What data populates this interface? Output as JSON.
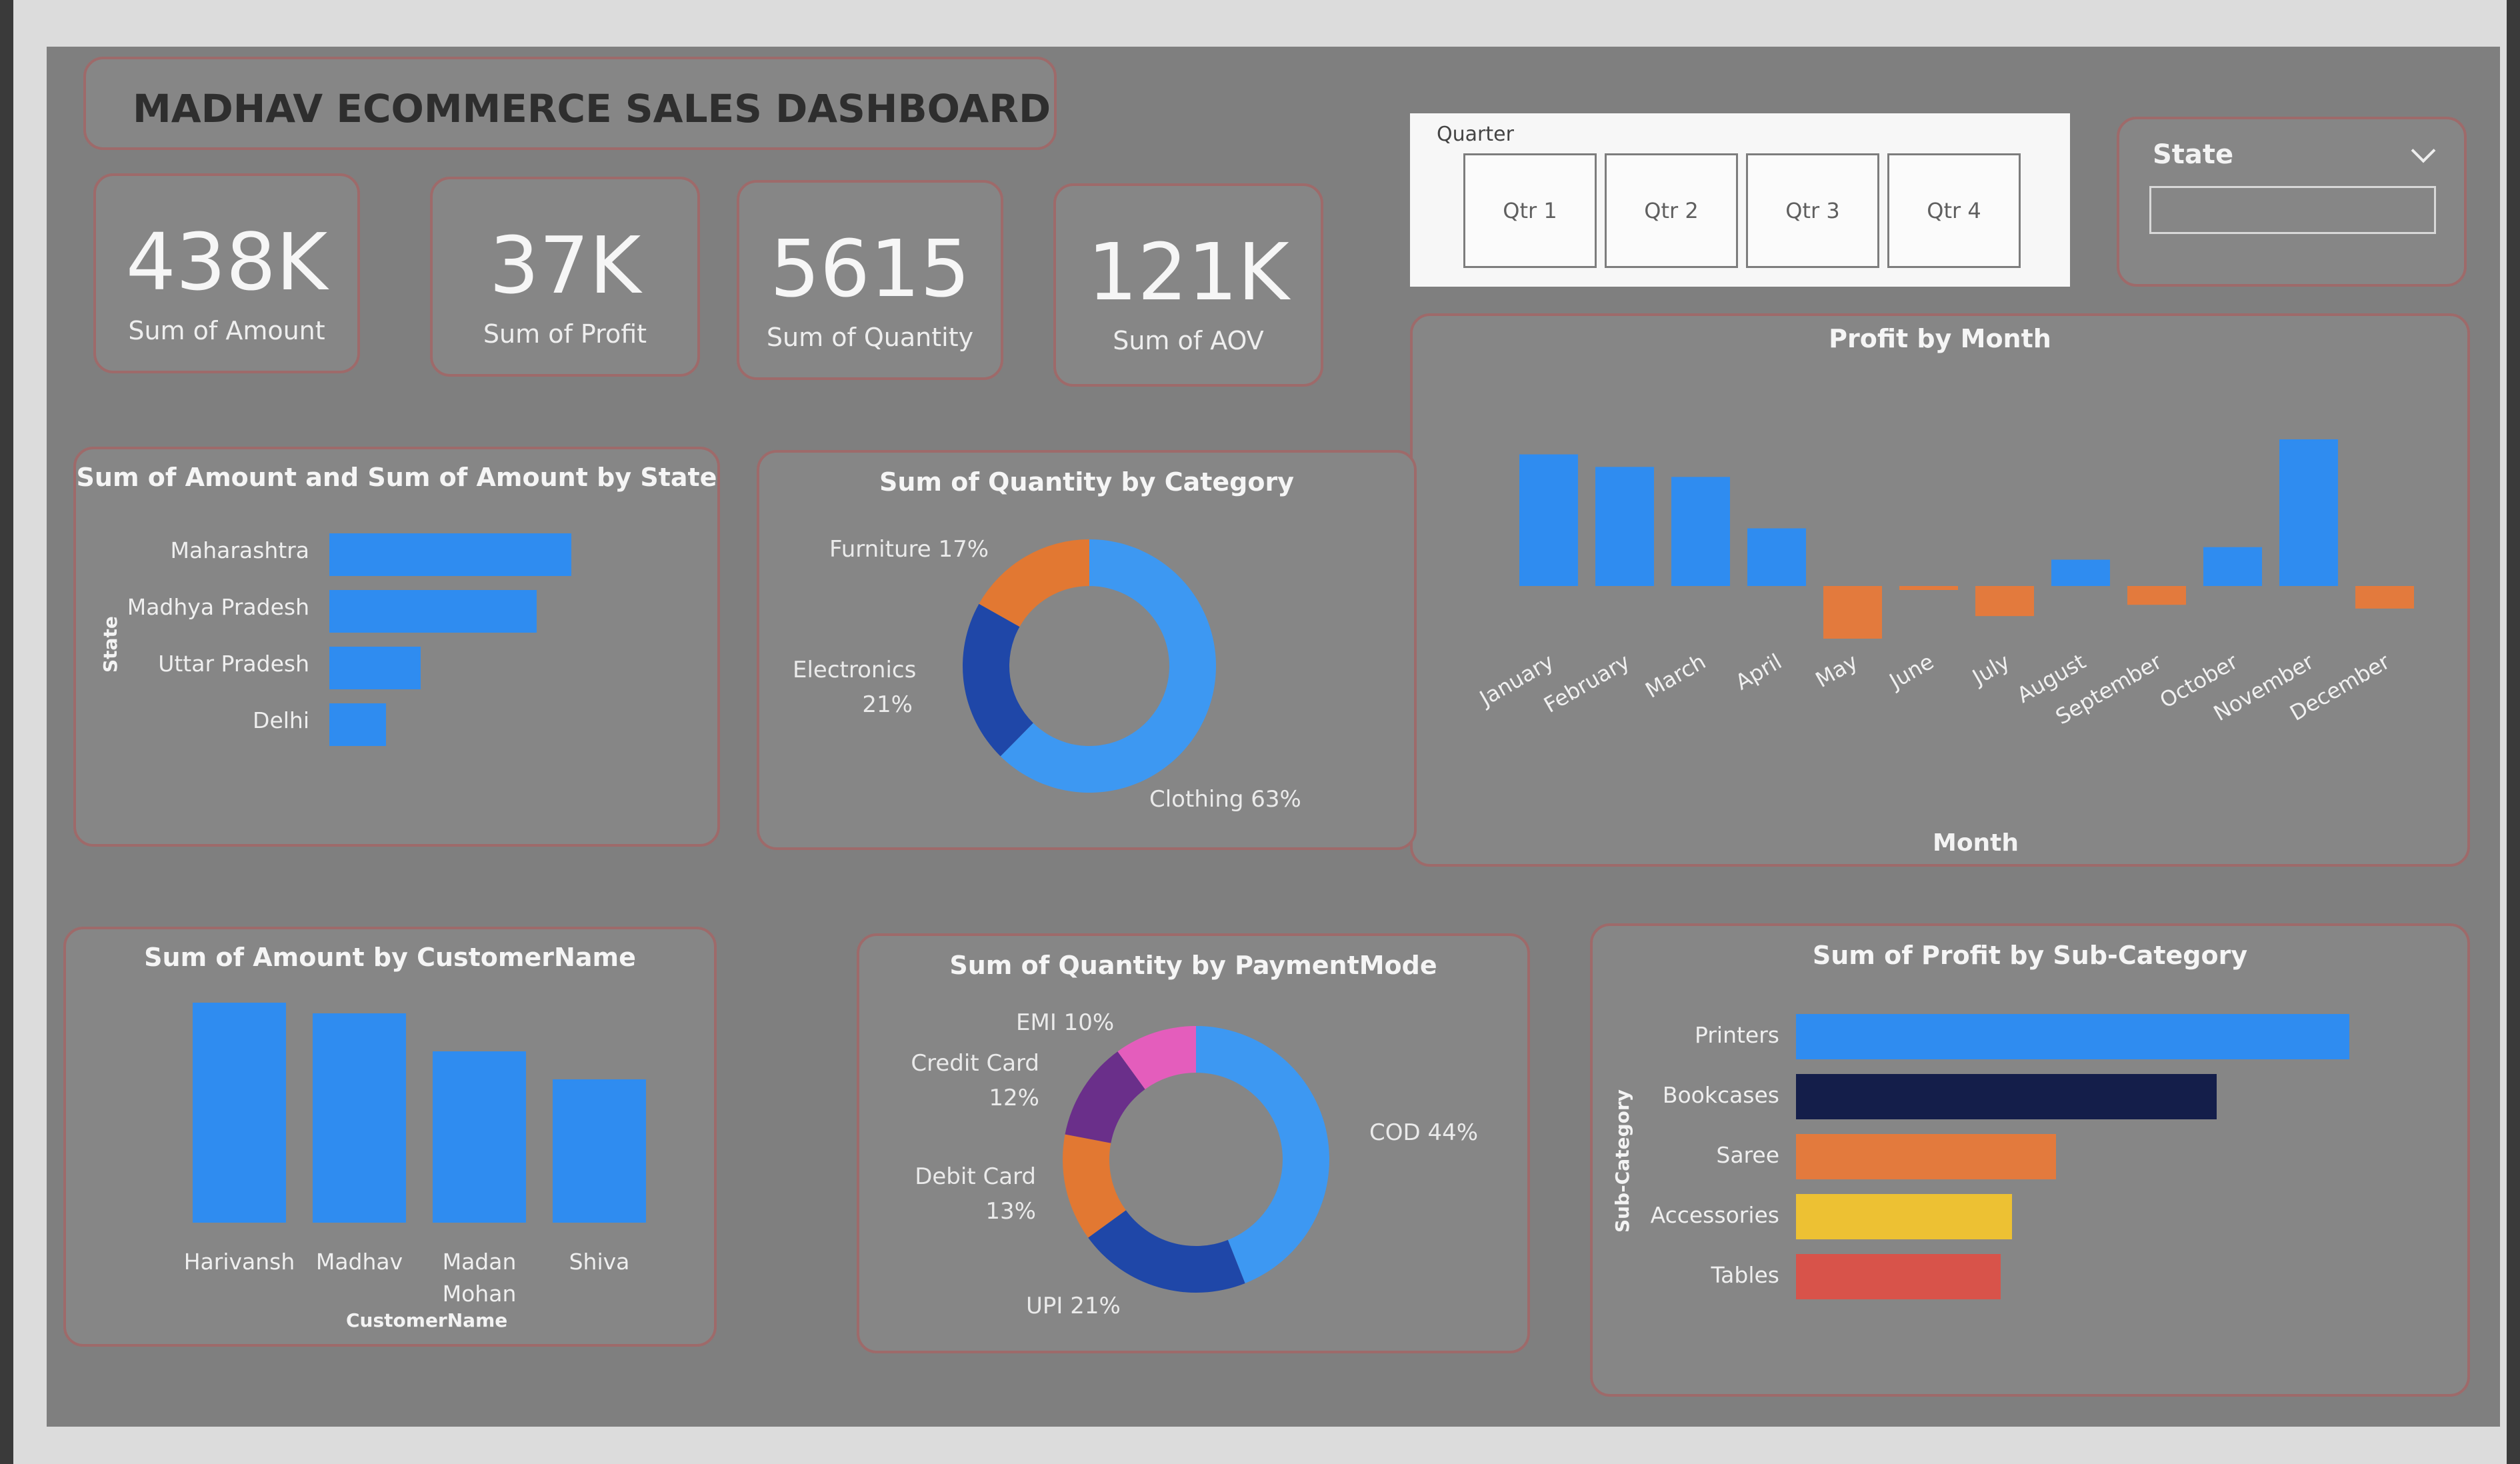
{
  "dashboard": {
    "title": "MADHAV ECOMMERCE SALES  DASHBOARD"
  },
  "kpis": [
    {
      "value": "438K",
      "label": "Sum of Amount"
    },
    {
      "value": "37K",
      "label": "Sum of Profit"
    },
    {
      "value": "5615",
      "label": "Sum of Quantity"
    },
    {
      "value": "121K",
      "label": "Sum of AOV"
    }
  ],
  "quarter_slicer": {
    "title": "Quarter",
    "options": [
      "Qtr 1",
      "Qtr 2",
      "Qtr 3",
      "Qtr 4"
    ]
  },
  "state_slicer": {
    "title": "State",
    "value": ""
  },
  "chart_data": [
    {
      "type": "bar",
      "title": "Sum of Amount and Sum of Amount by State",
      "ylabel": "State",
      "categories": [
        "Maharashtra",
        "Madhya Pradesh",
        "Uttar Pradesh",
        "Delhi"
      ],
      "values": [
        0.98,
        0.84,
        0.37,
        0.23
      ],
      "color": "#2f8cf0"
    },
    {
      "type": "pie",
      "title": "Sum of Quantity by Category",
      "labels": [
        "Clothing 63%",
        "Electronics\n21%",
        "Furniture 17%"
      ],
      "series": [
        {
          "name": "Clothing",
          "value": 63,
          "color": "#3d98f2"
        },
        {
          "name": "Electronics",
          "value": 21,
          "color": "#1f47a8"
        },
        {
          "name": "Furniture",
          "value": 17,
          "color": "#e27832"
        }
      ]
    },
    {
      "type": "bar",
      "title": "Profit by Month",
      "xlabel": "Month",
      "categories": [
        "January",
        "February",
        "March",
        "April",
        "May",
        "June",
        "July",
        "August",
        "September",
        "October",
        "November",
        "December"
      ],
      "values": [
        10500,
        9500,
        8700,
        4600,
        -4200,
        -300,
        -2400,
        2100,
        -1500,
        3100,
        11700,
        -1800
      ],
      "color": "#2f8cf0",
      "negative_color": "#e37a3d"
    },
    {
      "type": "bar",
      "title": "Sum of Amount by CustomerName",
      "xlabel": "CustomerName",
      "categories": [
        "Harivansh",
        "Madhav",
        "Madan\nMohan",
        "Shiva"
      ],
      "values": [
        1.0,
        0.95,
        0.78,
        0.65
      ],
      "color": "#2f8cf0"
    },
    {
      "type": "pie",
      "title": "Sum of Quantity by PaymentMode",
      "series": [
        {
          "name": "COD 44%",
          "value": 44,
          "color": "#3d98f2"
        },
        {
          "name": "UPI 21%",
          "value": 21,
          "color": "#1f47a8"
        },
        {
          "name": "Debit Card\n13%",
          "value": 13,
          "color": "#e27832"
        },
        {
          "name": "Credit Card\n12%",
          "value": 12,
          "color": "#6a2f8a"
        },
        {
          "name": "EMI 10%",
          "value": 10,
          "color": "#e45dbc"
        }
      ]
    },
    {
      "type": "bar",
      "title": "Sum of Profit by Sub-Category",
      "ylabel": "Sub-Category",
      "categories": [
        "Printers",
        "Bookcases",
        "Saree",
        "Accessories",
        "Tables"
      ],
      "values": [
        1.0,
        0.76,
        0.47,
        0.39,
        0.37
      ],
      "colors": [
        "#2f8cf0",
        "#141e4a",
        "#e37a3d",
        "#edc133",
        "#d8534a"
      ]
    }
  ]
}
